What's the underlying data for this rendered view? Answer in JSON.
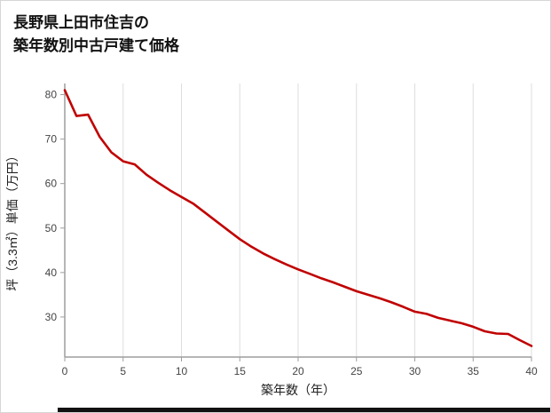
{
  "header": {
    "title_line1": "長野県上田市住吉の",
    "title_line2": "築年数別中古戸建て価格"
  },
  "chart_data": {
    "type": "line",
    "title": "長野県上田市住吉の築年数別中古戸建て価格",
    "xlabel": "築年数（年）",
    "ylabel": "坪（3.3㎡）単価（万円）",
    "x": [
      0,
      1,
      2,
      3,
      4,
      5,
      6,
      7,
      8,
      9,
      10,
      11,
      12,
      13,
      14,
      15,
      16,
      17,
      18,
      19,
      20,
      21,
      22,
      23,
      24,
      25,
      26,
      27,
      28,
      29,
      30,
      31,
      32,
      33,
      34,
      35,
      36,
      37,
      38,
      39,
      40
    ],
    "values": [
      81,
      75.2,
      75.5,
      70.5,
      67,
      65,
      64.3,
      62,
      60.2,
      58.5,
      57,
      55.5,
      53.5,
      51.5,
      49.5,
      47.5,
      45.8,
      44.3,
      43,
      41.8,
      40.7,
      39.7,
      38.7,
      37.8,
      36.8,
      35.8,
      35,
      34.2,
      33.3,
      32.3,
      31.2,
      30.7,
      29.8,
      29.2,
      28.6,
      27.8,
      26.8,
      26.3,
      26.2,
      24.8,
      23.5
    ],
    "xlim": [
      0,
      40
    ],
    "ylim": [
      21,
      82.5
    ],
    "xticks": [
      0,
      5,
      10,
      15,
      20,
      25,
      30,
      35,
      40
    ],
    "yticks": [
      30,
      40,
      50,
      60,
      70,
      80
    ],
    "grid": "vertical-only",
    "legend": "none",
    "colors": {
      "line": "#c00000",
      "axis": "#9e9e9e",
      "grid": "#dddddd",
      "tick_text": "#444444"
    }
  },
  "footer": {
    "bar_color": "#111111"
  }
}
